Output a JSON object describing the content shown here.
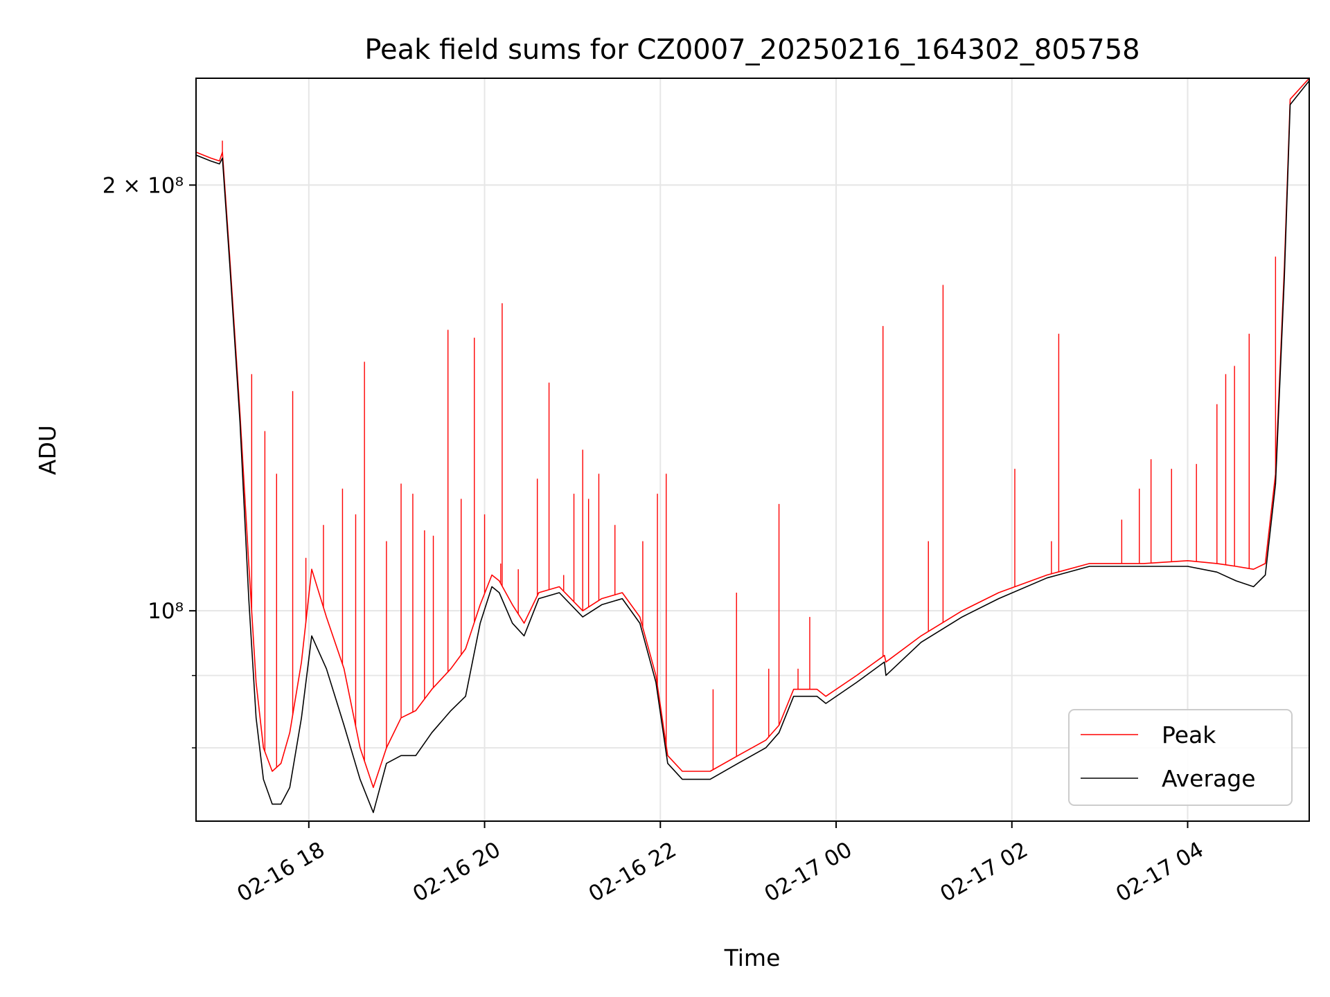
{
  "chart_data": {
    "type": "line",
    "title": "Peak field sums for CZ0007_20250216_164302_805758",
    "xlabel": "Time",
    "ylabel": "ADU",
    "y_scale": "log",
    "grid": true,
    "legend_position": "lower-right",
    "xlim": [
      "2025-02-16T16:43",
      "2025-02-17T05:23"
    ],
    "ylim": [
      71000000,
      238000000
    ],
    "x_ticks": [
      {
        "value": "2025-02-16T18:00",
        "label": "02-16 18"
      },
      {
        "value": "2025-02-16T20:00",
        "label": "02-16 20"
      },
      {
        "value": "2025-02-16T22:00",
        "label": "02-16 22"
      },
      {
        "value": "2025-02-17T00:00",
        "label": "02-17 00"
      },
      {
        "value": "2025-02-17T02:00",
        "label": "02-17 02"
      },
      {
        "value": "2025-02-17T04:00",
        "label": "02-17 04"
      }
    ],
    "y_ticks": [
      {
        "value": 100000000,
        "label": "10⁸"
      },
      {
        "value": 200000000,
        "label": "2 × 10⁸"
      }
    ],
    "series": [
      {
        "name": "Peak",
        "color": "#ff0000",
        "x": [
          "2025-02-16T16:43",
          "2025-02-16T16:53",
          "2025-02-16T16:59",
          "2025-02-16T17:01",
          "2025-02-16T17:06",
          "2025-02-16T17:13",
          "2025-02-16T17:19",
          "2025-02-16T17:24",
          "2025-02-16T17:29",
          "2025-02-16T17:35",
          "2025-02-16T17:41",
          "2025-02-16T17:47",
          "2025-02-16T17:55",
          "2025-02-16T18:02",
          "2025-02-16T18:12",
          "2025-02-16T18:24",
          "2025-02-16T18:35",
          "2025-02-16T18:44",
          "2025-02-16T18:53",
          "2025-02-16T19:03",
          "2025-02-16T19:13",
          "2025-02-16T19:24",
          "2025-02-16T19:37",
          "2025-02-16T19:47",
          "2025-02-16T19:57",
          "2025-02-16T20:05",
          "2025-02-16T20:10",
          "2025-02-16T20:19",
          "2025-02-16T20:27",
          "2025-02-16T20:37",
          "2025-02-16T20:51",
          "2025-02-16T21:07",
          "2025-02-16T21:20",
          "2025-02-16T21:34",
          "2025-02-16T21:46",
          "2025-02-16T21:57",
          "2025-02-16T22:05",
          "2025-02-16T22:15",
          "2025-02-16T22:34",
          "2025-02-16T22:53",
          "2025-02-16T23:12",
          "2025-02-16T23:21",
          "2025-02-16T23:31",
          "2025-02-16T23:47",
          "2025-02-16T23:53",
          "2025-02-17T00:14",
          "2025-02-17T00:33",
          "2025-02-17T00:34",
          "2025-02-17T00:58",
          "2025-02-17T01:26",
          "2025-02-17T01:51",
          "2025-02-17T02:24",
          "2025-02-17T02:53",
          "2025-02-17T03:30",
          "2025-02-17T04:00",
          "2025-02-17T04:20",
          "2025-02-17T04:33",
          "2025-02-17T04:45",
          "2025-02-17T04:53",
          "2025-02-17T05:00",
          "2025-02-17T05:06",
          "2025-02-17T05:10",
          "2025-02-17T05:23"
        ],
        "values": [
          211000000,
          209000000,
          208000000,
          211000000,
          178000000,
          138000000,
          108000000,
          89000000,
          80000000,
          77000000,
          78000000,
          82000000,
          92000000,
          107000000,
          99000000,
          91000000,
          80000000,
          75000000,
          80000000,
          84000000,
          85000000,
          88000000,
          91000000,
          94000000,
          101000000,
          106000000,
          105000000,
          101000000,
          98000000,
          103000000,
          104000000,
          100000000,
          102000000,
          103000000,
          99000000,
          90000000,
          79000000,
          77000000,
          77000000,
          79000000,
          81000000,
          83000000,
          88000000,
          88000000,
          87000000,
          90000000,
          93000000,
          92000000,
          96000000,
          100000000,
          103000000,
          106000000,
          108000000,
          108000000,
          108500000,
          108000000,
          107500000,
          107000000,
          108000000,
          125000000,
          175000000,
          230000000,
          238000000
        ],
        "spikes": [
          [
            "2025-02-16T17:01",
            215000000
          ],
          [
            "2025-02-16T17:21",
            147000000
          ],
          [
            "2025-02-16T17:30",
            134000000
          ],
          [
            "2025-02-16T17:38",
            125000000
          ],
          [
            "2025-02-16T17:49",
            143000000
          ],
          [
            "2025-02-16T17:58",
            109000000
          ],
          [
            "2025-02-16T18:10",
            115000000
          ],
          [
            "2025-02-16T18:23",
            122000000
          ],
          [
            "2025-02-16T18:32",
            117000000
          ],
          [
            "2025-02-16T18:38",
            150000000
          ],
          [
            "2025-02-16T18:53",
            112000000
          ],
          [
            "2025-02-16T19:03",
            123000000
          ],
          [
            "2025-02-16T19:11",
            121000000
          ],
          [
            "2025-02-16T19:19",
            114000000
          ],
          [
            "2025-02-16T19:25",
            113000000
          ],
          [
            "2025-02-16T19:35",
            158000000
          ],
          [
            "2025-02-16T19:44",
            120000000
          ],
          [
            "2025-02-16T19:53",
            156000000
          ],
          [
            "2025-02-16T20:00",
            117000000
          ],
          [
            "2025-02-16T20:11",
            108000000
          ],
          [
            "2025-02-16T20:12",
            165000000
          ],
          [
            "2025-02-16T20:23",
            107000000
          ],
          [
            "2025-02-16T20:36",
            124000000
          ],
          [
            "2025-02-16T20:44",
            145000000
          ],
          [
            "2025-02-16T20:54",
            106000000
          ],
          [
            "2025-02-16T21:01",
            121000000
          ],
          [
            "2025-02-16T21:07",
            130000000
          ],
          [
            "2025-02-16T21:11",
            120000000
          ],
          [
            "2025-02-16T21:18",
            125000000
          ],
          [
            "2025-02-16T21:29",
            115000000
          ],
          [
            "2025-02-16T21:48",
            112000000
          ],
          [
            "2025-02-16T21:58",
            121000000
          ],
          [
            "2025-02-16T22:04",
            125000000
          ],
          [
            "2025-02-16T22:36",
            88000000
          ],
          [
            "2025-02-16T22:52",
            103000000
          ],
          [
            "2025-02-16T23:14",
            91000000
          ],
          [
            "2025-02-16T23:21",
            119000000
          ],
          [
            "2025-02-16T23:34",
            91000000
          ],
          [
            "2025-02-16T23:42",
            99000000
          ],
          [
            "2025-02-17T00:32",
            159000000
          ],
          [
            "2025-02-17T01:03",
            112000000
          ],
          [
            "2025-02-17T01:13",
            170000000
          ],
          [
            "2025-02-17T02:02",
            126000000
          ],
          [
            "2025-02-17T02:27",
            112000000
          ],
          [
            "2025-02-17T02:32",
            157000000
          ],
          [
            "2025-02-17T03:15",
            116000000
          ],
          [
            "2025-02-17T03:27",
            122000000
          ],
          [
            "2025-02-17T03:35",
            128000000
          ],
          [
            "2025-02-17T03:49",
            126000000
          ],
          [
            "2025-02-17T04:06",
            127000000
          ],
          [
            "2025-02-17T04:20",
            140000000
          ],
          [
            "2025-02-17T04:26",
            147000000
          ],
          [
            "2025-02-17T04:32",
            149000000
          ],
          [
            "2025-02-17T04:42",
            157000000
          ],
          [
            "2025-02-17T05:00",
            178000000
          ]
        ]
      },
      {
        "name": "Average",
        "color": "#000000",
        "x": [
          "2025-02-16T16:43",
          "2025-02-16T16:53",
          "2025-02-16T16:59",
          "2025-02-16T17:01",
          "2025-02-16T17:06",
          "2025-02-16T17:13",
          "2025-02-16T17:19",
          "2025-02-16T17:24",
          "2025-02-16T17:29",
          "2025-02-16T17:35",
          "2025-02-16T17:41",
          "2025-02-16T17:47",
          "2025-02-16T17:55",
          "2025-02-16T18:02",
          "2025-02-16T18:12",
          "2025-02-16T18:24",
          "2025-02-16T18:35",
          "2025-02-16T18:44",
          "2025-02-16T18:53",
          "2025-02-16T19:03",
          "2025-02-16T19:13",
          "2025-02-16T19:24",
          "2025-02-16T19:37",
          "2025-02-16T19:47",
          "2025-02-16T19:57",
          "2025-02-16T20:05",
          "2025-02-16T20:10",
          "2025-02-16T20:19",
          "2025-02-16T20:27",
          "2025-02-16T20:37",
          "2025-02-16T20:51",
          "2025-02-16T21:07",
          "2025-02-16T21:20",
          "2025-02-16T21:34",
          "2025-02-16T21:46",
          "2025-02-16T21:57",
          "2025-02-16T22:05",
          "2025-02-16T22:15",
          "2025-02-16T22:34",
          "2025-02-16T22:53",
          "2025-02-16T23:12",
          "2025-02-16T23:21",
          "2025-02-16T23:31",
          "2025-02-16T23:47",
          "2025-02-16T23:53",
          "2025-02-17T00:14",
          "2025-02-17T00:33",
          "2025-02-17T00:34",
          "2025-02-17T00:58",
          "2025-02-17T01:26",
          "2025-02-17T01:51",
          "2025-02-17T02:24",
          "2025-02-17T02:53",
          "2025-02-17T03:30",
          "2025-02-17T04:00",
          "2025-02-17T04:20",
          "2025-02-17T04:33",
          "2025-02-17T04:45",
          "2025-02-17T04:53",
          "2025-02-17T05:00",
          "2025-02-17T05:06",
          "2025-02-17T05:10",
          "2025-02-17T05:23"
        ],
        "values": [
          210000000,
          208000000,
          207000000,
          209000000,
          176000000,
          136000000,
          102000000,
          84000000,
          76000000,
          73000000,
          73000000,
          75000000,
          84000000,
          96000000,
          91000000,
          83000000,
          76000000,
          72000000,
          78000000,
          79000000,
          79000000,
          82000000,
          85000000,
          87000000,
          98000000,
          104000000,
          103000000,
          98000000,
          96000000,
          102000000,
          103000000,
          99000000,
          101000000,
          102000000,
          98000000,
          89000000,
          78000000,
          76000000,
          76000000,
          78000000,
          80000000,
          82000000,
          87000000,
          87000000,
          86000000,
          89000000,
          92000000,
          90000000,
          95000000,
          99000000,
          102000000,
          105500000,
          107500000,
          107500000,
          107500000,
          106500000,
          105000000,
          104000000,
          106000000,
          123000000,
          172000000,
          228000000,
          237000000
        ]
      }
    ]
  }
}
